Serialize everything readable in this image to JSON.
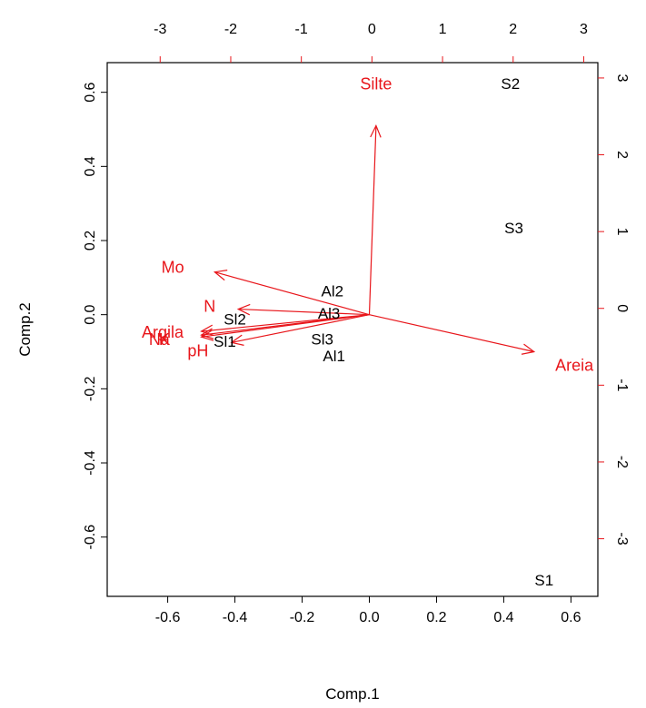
{
  "chart_data": {
    "type": "scatter",
    "subtype": "biplot",
    "xlabel": "Comp.1",
    "ylabel": "Comp.2",
    "xlim": [
      -0.78,
      0.68
    ],
    "ylim": [
      -0.76,
      0.68
    ],
    "bottom_ticks": [
      "-0.6",
      "-0.4",
      "-0.2",
      "0.0",
      "0.2",
      "0.4",
      "0.6"
    ],
    "left_ticks": [
      "-0.6",
      "-0.4",
      "-0.2",
      "0.0",
      "0.2",
      "0.4",
      "0.6"
    ],
    "top_ticks": [
      "-3",
      "-2",
      "-1",
      "0",
      "1",
      "2",
      "3"
    ],
    "right_ticks": [
      "-3",
      "-2",
      "-1",
      "0",
      "1",
      "2",
      "3"
    ],
    "variable_axis_range": [
      -3.75,
      3.2
    ],
    "observation_color": "#000000",
    "variable_color": "#e8161b",
    "observations": [
      {
        "label": "S2",
        "x": 0.42,
        "y": 0.62
      },
      {
        "label": "S3",
        "x": 0.43,
        "y": 0.23
      },
      {
        "label": "S1",
        "x": 0.52,
        "y": -0.72
      },
      {
        "label": "Al2",
        "x": -0.11,
        "y": 0.06
      },
      {
        "label": "Al3",
        "x": -0.12,
        "y": 0.0
      },
      {
        "label": "Sl2",
        "x": -0.4,
        "y": -0.015
      },
      {
        "label": "Sl1",
        "x": -0.43,
        "y": -0.075
      },
      {
        "label": "Sl3",
        "x": -0.14,
        "y": -0.07
      },
      {
        "label": "Al1",
        "x": -0.105,
        "y": -0.115
      }
    ],
    "variables": [
      {
        "label": "Silte",
        "x": 0.02,
        "y": 0.51,
        "label_x": 0.02,
        "label_y": 0.62
      },
      {
        "label": "Areia",
        "x": 0.49,
        "y": -0.1,
        "label_x": 0.61,
        "label_y": -0.14
      },
      {
        "label": "Mo",
        "x": -0.46,
        "y": 0.115,
        "label_x": -0.585,
        "label_y": 0.125
      },
      {
        "label": "N",
        "x": -0.39,
        "y": 0.015,
        "label_x": -0.475,
        "label_y": 0.02
      },
      {
        "label": "Argila",
        "x": -0.5,
        "y": -0.045,
        "label_x": -0.615,
        "label_y": -0.05
      },
      {
        "label": "Na",
        "x": -0.5,
        "y": -0.055,
        "label_x": -0.625,
        "label_y": -0.07
      },
      {
        "label": "K",
        "x": -0.5,
        "y": -0.06,
        "label_x": -0.61,
        "label_y": -0.07
      },
      {
        "label": "pH",
        "x": -0.41,
        "y": -0.075,
        "label_x": -0.51,
        "label_y": -0.1
      }
    ]
  }
}
